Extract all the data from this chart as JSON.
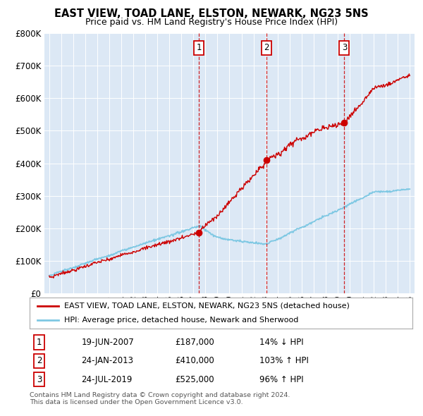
{
  "title": "EAST VIEW, TOAD LANE, ELSTON, NEWARK, NG23 5NS",
  "subtitle": "Price paid vs. HM Land Registry's House Price Index (HPI)",
  "plot_bg_color": "#dce8f5",
  "ylim": [
    0,
    800000
  ],
  "yticks": [
    0,
    100000,
    200000,
    300000,
    400000,
    500000,
    600000,
    700000,
    800000
  ],
  "ytick_labels": [
    "£0",
    "£100K",
    "£200K",
    "£300K",
    "£400K",
    "£500K",
    "£600K",
    "£700K",
    "£800K"
  ],
  "sale_dates_num": [
    2007.46,
    2013.07,
    2019.56
  ],
  "sale_prices": [
    187000,
    410000,
    525000
  ],
  "sale_labels": [
    "1",
    "2",
    "3"
  ],
  "sale_info": [
    {
      "label": "1",
      "date": "19-JUN-2007",
      "price": "£187,000",
      "hpi": "14% ↓ HPI"
    },
    {
      "label": "2",
      "date": "24-JAN-2013",
      "price": "£410,000",
      "hpi": "103% ↑ HPI"
    },
    {
      "label": "3",
      "date": "24-JUL-2019",
      "price": "£525,000",
      "hpi": "96% ↑ HPI"
    }
  ],
  "legend_line1": "EAST VIEW, TOAD LANE, ELSTON, NEWARK, NG23 5NS (detached house)",
  "legend_line2": "HPI: Average price, detached house, Newark and Sherwood",
  "footer": "Contains HM Land Registry data © Crown copyright and database right 2024.\nThis data is licensed under the Open Government Licence v3.0.",
  "hpi_color": "#7ec8e3",
  "sale_color": "#cc0000",
  "vline_color": "#cc0000",
  "xmin": 1994.6,
  "xmax": 2025.4
}
